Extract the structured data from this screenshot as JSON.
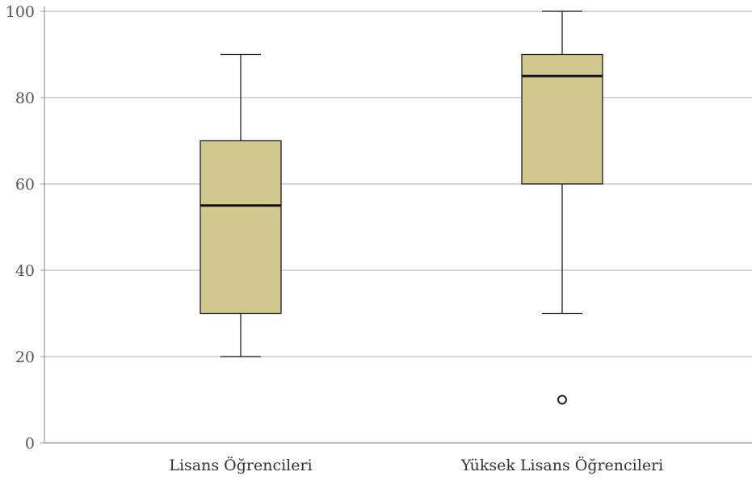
{
  "chart_data": {
    "type": "box",
    "categories": [
      "Lisans Öğrencileri",
      "Yüksek Lisans Öğrencileri"
    ],
    "boxes": [
      {
        "category": "Lisans Öğrencileri",
        "min": 20,
        "q1": 30,
        "median": 55,
        "q3": 70,
        "max": 90,
        "outliers": []
      },
      {
        "category": "Yüksek Lisans Öğrencileri",
        "min": 30,
        "q1": 60,
        "median": 85,
        "q3": 90,
        "max": 100,
        "outliers": [
          10
        ]
      }
    ],
    "yticks": [
      "0",
      "20",
      "40",
      "60",
      "80",
      "100"
    ],
    "ylim": [
      0,
      100
    ],
    "grid": true,
    "title": "",
    "xlabel": "",
    "ylabel": "",
    "colors": {
      "box_fill": "#d0c88f",
      "box_stroke": "#1e1e1e",
      "grid": "#c8c8c8",
      "axis": "#9a9a9a"
    }
  }
}
